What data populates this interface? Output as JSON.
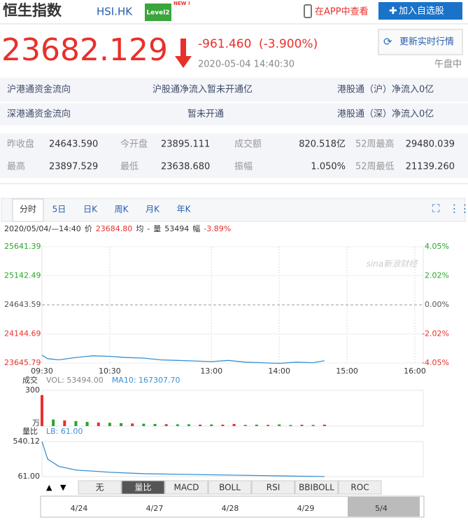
{
  "header": {
    "title": "恒生指数",
    "code": "HSI.HK",
    "badge": "Level2",
    "badge_new": "NEW !",
    "app_link": "在APP中查看",
    "add_button": "加入自选股"
  },
  "quote": {
    "price": "23682.129",
    "change": "-961.460",
    "change_pct": "(-3.900%)",
    "time": "2020-05-04 14:40:30",
    "refresh": "更新实时行情",
    "status": "午盘中"
  },
  "flows": [
    [
      "沪港通资金流向",
      "沪股通净流入暂未开通亿",
      "港股通（沪）净流入0亿"
    ],
    [
      "深港通资金流向",
      "暂未开通",
      "港股通（深）净流入0亿"
    ]
  ],
  "stats": [
    [
      "昨收盘",
      "24643.590",
      "今开盘",
      "23895.111",
      "成交额",
      "820.518亿",
      "52周最高",
      "29480.039"
    ],
    [
      "最高",
      "23897.529",
      "最低",
      "23638.680",
      "振幅",
      "1.050%",
      "52周最低",
      "21139.260"
    ]
  ],
  "tabs": [
    "分时",
    "5日",
    "日K",
    "周K",
    "月K",
    "年K"
  ],
  "info": {
    "datetime": "2020/05/04/—14:40",
    "price_label": "价",
    "price": "23684.80",
    "avg_label": "均",
    "avg": "-",
    "vol_label": "量",
    "vol": "53494",
    "pct_label": "幅",
    "pct": "-3.89%"
  },
  "watermark": "sina新浪财经",
  "chart_data": [
    {
      "type": "line",
      "color": "#3a8fd0",
      "x": [
        0,
        5,
        15,
        30,
        45,
        60,
        75,
        90,
        105,
        120,
        135,
        150,
        165,
        180,
        195,
        210,
        225,
        240,
        250
      ],
      "values": [
        23780,
        23720,
        23700,
        23740,
        23770,
        23760,
        23740,
        23730,
        23700,
        23690,
        23680,
        23670,
        23690,
        23660,
        23650,
        23640,
        23660,
        23650,
        23684.8
      ],
      "xlim": [
        0,
        330
      ],
      "xticks": [
        {
          "value": 0,
          "label": "09:30"
        },
        {
          "value": 60,
          "label": "10:30"
        },
        {
          "value": 150,
          "label": "13:00"
        },
        {
          "value": 210,
          "label": "14:00"
        },
        {
          "value": 270,
          "label": "15:00"
        },
        {
          "value": 330,
          "label": "16:00"
        }
      ],
      "ylim": [
        23645.79,
        25641.39
      ],
      "yticks": [
        23645.79,
        24144.69,
        24643.59,
        25142.49,
        25641.39
      ],
      "ytick_colors": [
        "#e8302b",
        "#e8302b",
        "#555555",
        "#2aa52a",
        "#2aa52a"
      ],
      "y2lim": [
        -4.05,
        4.05
      ],
      "y2ticks": [
        {
          "value": -4.05,
          "label": "-4.05%"
        },
        {
          "value": -2.02,
          "label": "-2.02%"
        },
        {
          "value": 0,
          "label": "0.00%"
        },
        {
          "value": 2.02,
          "label": "2.02%"
        },
        {
          "value": 4.05,
          "label": "4.05%"
        }
      ],
      "grid": true
    },
    {
      "type": "bar",
      "title": "成交",
      "legend": [
        "VOL: 53494.00",
        "MA10: 167307.70"
      ],
      "legend_colors": [
        "#888888",
        "#3a8fd0"
      ],
      "unit": "万",
      "x": [
        0,
        10,
        20,
        30,
        40,
        50,
        60,
        70,
        80,
        90,
        100,
        110,
        120,
        130,
        140,
        150,
        160,
        170,
        180,
        190,
        200,
        210,
        220,
        230,
        240,
        250
      ],
      "values": [
        260,
        55,
        48,
        42,
        35,
        30,
        28,
        25,
        22,
        20,
        18,
        16,
        15,
        15,
        12,
        14,
        12,
        18,
        10,
        12,
        10,
        14,
        9,
        11,
        10,
        12
      ],
      "colors": [
        "#e8302b",
        "#2aa52a",
        "#e8302b",
        "#2aa52a",
        "#2aa52a",
        "#e8302b",
        "#2aa52a",
        "#2aa52a",
        "#e8302b",
        "#2aa52a",
        "#2aa52a",
        "#e8302b",
        "#2aa52a",
        "#2aa52a",
        "#e8302b",
        "#2aa52a",
        "#e8302b",
        "#e8302b",
        "#2aa52a",
        "#2aa52a",
        "#e8302b",
        "#2aa52a",
        "#2aa52a",
        "#e8302b",
        "#2aa52a",
        "#e8302b"
      ],
      "xlim": [
        0,
        330
      ],
      "ylim": [
        0,
        300
      ],
      "yticks": [
        300
      ]
    },
    {
      "type": "line",
      "title": "量比",
      "legend": "LB: 61.00",
      "color": "#3a8fd0",
      "x": [
        0,
        5,
        15,
        30,
        60,
        90,
        150,
        210,
        250
      ],
      "values": [
        540.12,
        300,
        200,
        150,
        120,
        100,
        85,
        70,
        61
      ],
      "xlim": [
        0,
        330
      ],
      "ylim": [
        61,
        540.12
      ],
      "yticks": [
        {
          "value": 61,
          "label": "61.00"
        },
        {
          "value": 540.12,
          "label": "540.12"
        }
      ]
    }
  ],
  "indicator_tabs": [
    "无",
    "量比",
    "MACD",
    "BOLL",
    "RSI",
    "BBIBOLL",
    "ROC"
  ],
  "date_nav": [
    "4/24",
    "4/27",
    "4/28",
    "4/29",
    "5/4"
  ]
}
